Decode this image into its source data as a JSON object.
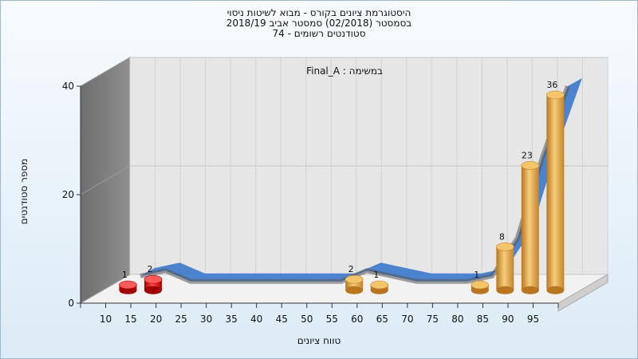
{
  "chart_data": {
    "type": "bar",
    "title_lines": [
      "היסטוגרמת ציונים בקורס - מבוא לשיטות ניסוי",
      "בסמסטר  (02/2018)  סמסטר אביב 2018/19",
      "סטודנטים רשומים - 74"
    ],
    "xlabel": "טווח ציונים",
    "ylabel": "מספר סטודנטים",
    "annotation": "במשימה : Final_A",
    "categories": [
      "10",
      "15",
      "20",
      "25",
      "30",
      "35",
      "40",
      "45",
      "50",
      "55",
      "60",
      "65",
      "70",
      "75",
      "80",
      "85",
      "90",
      "95"
    ],
    "values": [
      1,
      2,
      0,
      0,
      0,
      0,
      0,
      0,
      0,
      2,
      1,
      0,
      0,
      0,
      1,
      8,
      23,
      36
    ],
    "ylim": [
      0,
      40
    ],
    "yticks": [
      0,
      20,
      40
    ],
    "grid": true,
    "legend": "none",
    "colors": {
      "fail_bar": "#e01010",
      "pass_bar": "#e8a640",
      "trend_ribbon": "#3a78cc",
      "back_wall": "#e6e6e6",
      "side_wall": "#808080",
      "floor": "#f2f2f2"
    }
  }
}
